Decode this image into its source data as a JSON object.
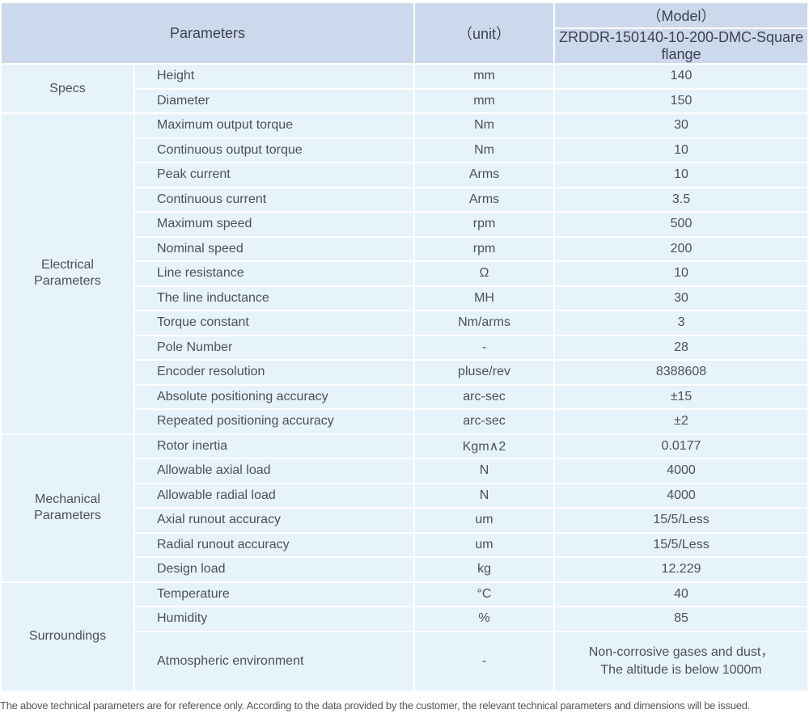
{
  "header": {
    "parameters_label": "Parameters",
    "unit_label": "（unit）",
    "model_label": "（Model）",
    "model_value": "ZRDDR-150140-10-200-DMC-Square flange"
  },
  "table": {
    "sections": [
      {
        "group": "Specs",
        "rows": [
          {
            "label": "Height",
            "unit": "mm",
            "value": "140"
          },
          {
            "label": "Diameter",
            "unit": "mm",
            "value": "150"
          }
        ]
      },
      {
        "group": "Electrical Parameters",
        "rows": [
          {
            "label": "Maximum output torque",
            "unit": "Nm",
            "value": "30"
          },
          {
            "label": "Continuous output torque",
            "unit": "Nm",
            "value": "10"
          },
          {
            "label": "Peak current",
            "unit": "Arms",
            "value": "10"
          },
          {
            "label": "Continuous current",
            "unit": "Arms",
            "value": "3.5"
          },
          {
            "label": "Maximum speed",
            "unit": "rpm",
            "value": "500"
          },
          {
            "label": "Nominal speed",
            "unit": "rpm",
            "value": "200"
          },
          {
            "label": "Line resistance",
            "unit": "Ω",
            "value": "10"
          },
          {
            "label": "The line inductance",
            "unit": "MH",
            "value": "30"
          },
          {
            "label": "Torque constant",
            "unit": "Nm/arms",
            "value": "3"
          },
          {
            "label": "Pole Number",
            "unit": "-",
            "value": "28"
          },
          {
            "label": "Encoder resolution",
            "unit": "pluse/rev",
            "value": "8388608"
          },
          {
            "label": "Absolute positioning accuracy",
            "unit": "arc-sec",
            "value": "±15"
          },
          {
            "label": "Repeated positioning accuracy",
            "unit": "arc-sec",
            "value": "±2"
          }
        ]
      },
      {
        "group": "Mechanical Parameters",
        "rows": [
          {
            "label": "Rotor inertia",
            "unit": "Kgm∧2",
            "value": "0.0177"
          },
          {
            "label": "Allowable axial load",
            "unit": "N",
            "value": "4000"
          },
          {
            "label": "Allowable radial load",
            "unit": "N",
            "value": "4000"
          },
          {
            "label": "Axial runout accuracy",
            "unit": "um",
            "value": "15/5/Less"
          },
          {
            "label": "Radial runout accuracy",
            "unit": "um",
            "value": "15/5/Less"
          },
          {
            "label": "Design load",
            "unit": "kg",
            "value": "12.229"
          }
        ]
      },
      {
        "group": "Surroundings",
        "rows": [
          {
            "label": "Temperature",
            "unit": "°C",
            "value": "40"
          },
          {
            "label": "Humidity",
            "unit": "%",
            "value": "85"
          },
          {
            "label": "Atmospheric environment",
            "unit": "-",
            "value_lines": [
              "Non-corrosive gases and dust，",
              "The altitude is below 1000m"
            ],
            "tall": true
          }
        ]
      }
    ]
  },
  "footer": {
    "note": "The above technical parameters are for reference only. According to the data provided by the customer, the relevant technical parameters and dimensions will be issued."
  },
  "colors": {
    "header_bg": "#ccd8ec",
    "model_row_bg": "#d7e0f1",
    "cell_bg": "#e7f3fb",
    "divider": "#ffffff",
    "header_text": "#3e444c",
    "body_text": "#4b5157",
    "footer_text": "#53575c"
  }
}
